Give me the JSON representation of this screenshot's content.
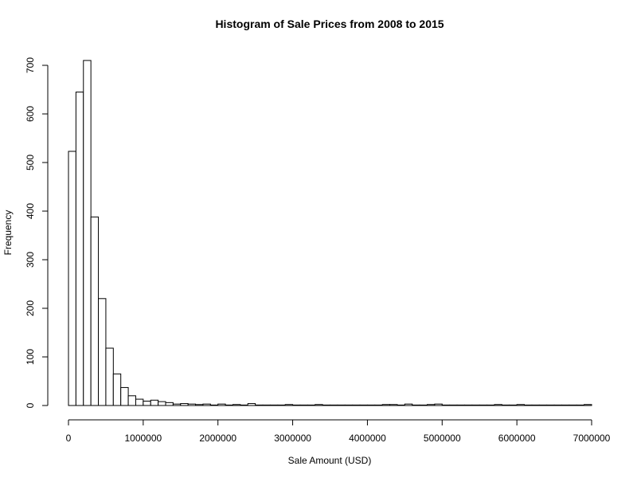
{
  "chart_data": {
    "type": "bar",
    "title": "Histogram of Sale Prices from 2008 to 2015",
    "xlabel": "Sale Amount (USD)",
    "ylabel": "Frequency",
    "xlim": [
      0,
      7000000
    ],
    "ylim": [
      0,
      700
    ],
    "bin_width": 100000,
    "x_ticks": [
      0,
      1000000,
      2000000,
      3000000,
      4000000,
      5000000,
      6000000,
      7000000
    ],
    "y_ticks": [
      0,
      100,
      200,
      300,
      400,
      500,
      600,
      700
    ],
    "values": [
      523,
      645,
      710,
      388,
      220,
      118,
      65,
      37,
      20,
      13,
      9,
      11,
      8,
      6,
      3,
      4,
      3,
      2,
      3,
      1,
      3,
      1,
      2,
      1,
      4,
      1,
      1,
      1,
      1,
      2,
      1,
      1,
      1,
      2,
      1,
      1,
      1,
      1,
      1,
      1,
      1,
      1,
      2,
      2,
      1,
      3,
      1,
      1,
      2,
      3,
      1,
      1,
      1,
      1,
      1,
      1,
      1,
      2,
      1,
      1,
      2,
      1,
      1,
      1,
      1,
      1,
      1,
      1,
      1,
      2
    ]
  }
}
